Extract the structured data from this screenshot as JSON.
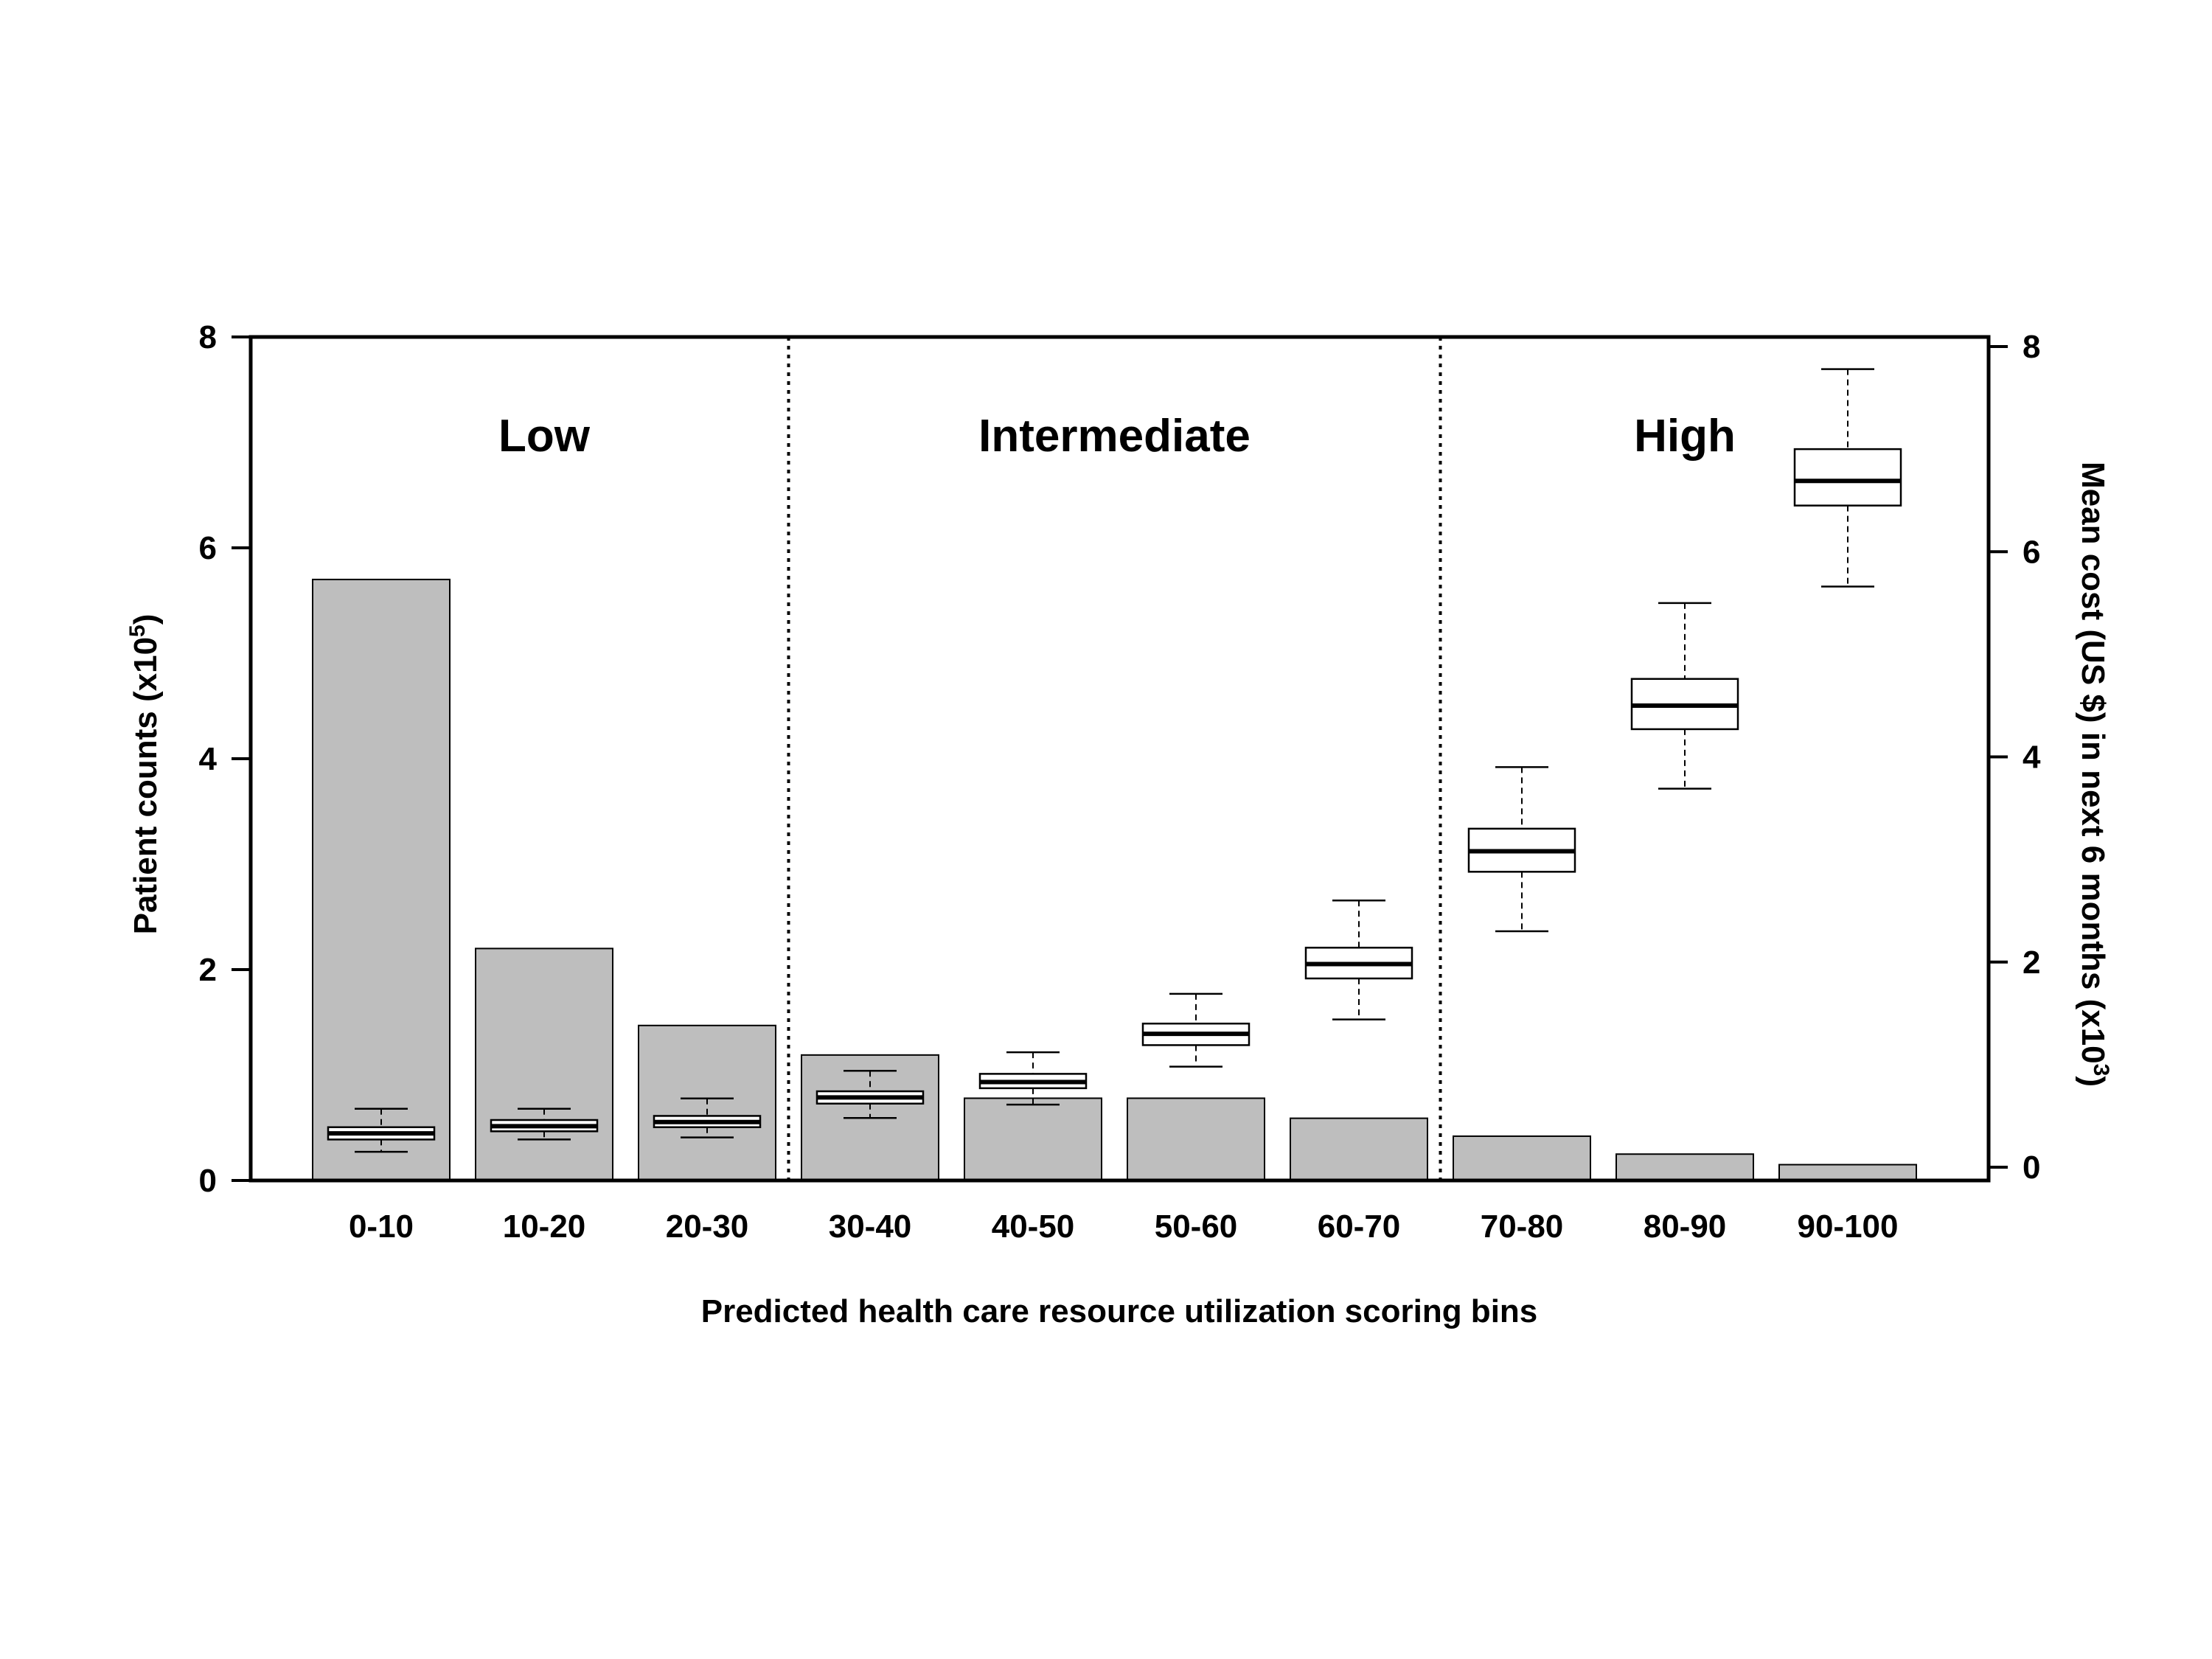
{
  "chart_data": {
    "type": "bar",
    "title": "",
    "xlabel": "Predicted health care resource utilization scoring bins",
    "ylabel": "Patient counts (x10",
    "ylabel_sup": "5",
    "ylabel_close": ")",
    "y2label": "Mean cost (US $) in next 6 months (x10",
    "y2label_sup": "3",
    "y2label_close": ")",
    "categories": [
      "0-10",
      "10-20",
      "20-30",
      "30-40",
      "40-50",
      "50-60",
      "60-70",
      "70-80",
      "80-90",
      "90-100"
    ],
    "ylim": [
      0,
      8
    ],
    "y2lim": [
      0,
      8
    ],
    "yticks": [
      "0",
      "2",
      "4",
      "6",
      "8"
    ],
    "y2ticks": [
      "0",
      "2",
      "4",
      "6",
      "8"
    ],
    "series": [
      {
        "name": "Patient counts",
        "axis": "left",
        "values": [
          5.7,
          2.2,
          1.47,
          1.19,
          0.78,
          0.78,
          0.59,
          0.42,
          0.25,
          0.15
        ],
        "color": "#bebebe"
      },
      {
        "name": "Mean cost",
        "axis": "right",
        "type": "boxplot",
        "boxes": [
          {
            "whisker_low": 0.15,
            "q1": 0.27,
            "median": 0.33,
            "q3": 0.39,
            "whisker_high": 0.57
          },
          {
            "whisker_low": 0.27,
            "q1": 0.35,
            "median": 0.4,
            "q3": 0.46,
            "whisker_high": 0.57
          },
          {
            "whisker_low": 0.29,
            "q1": 0.39,
            "median": 0.44,
            "q3": 0.5,
            "whisker_high": 0.67
          },
          {
            "whisker_low": 0.48,
            "q1": 0.62,
            "median": 0.68,
            "q3": 0.74,
            "whisker_high": 0.94
          },
          {
            "whisker_low": 0.61,
            "q1": 0.77,
            "median": 0.83,
            "q3": 0.91,
            "whisker_high": 1.12
          },
          {
            "whisker_low": 0.98,
            "q1": 1.19,
            "median": 1.3,
            "q3": 1.4,
            "whisker_high": 1.69
          },
          {
            "whisker_low": 1.44,
            "q1": 1.84,
            "median": 1.98,
            "q3": 2.14,
            "whisker_high": 2.6
          },
          {
            "whisker_low": 2.3,
            "q1": 2.88,
            "median": 3.08,
            "q3": 3.3,
            "whisker_high": 3.9
          },
          {
            "whisker_low": 3.69,
            "q1": 4.27,
            "median": 4.5,
            "q3": 4.76,
            "whisker_high": 5.5
          },
          {
            "whisker_low": 5.66,
            "q1": 6.45,
            "median": 6.69,
            "q3": 7.0,
            "whisker_high": 7.78
          }
        ]
      }
    ],
    "regions": [
      {
        "label": "Low",
        "from_index": 0,
        "to_index": 2
      },
      {
        "label": "Intermediate",
        "from_index": 3,
        "to_index": 6
      },
      {
        "label": "High",
        "from_index": 7,
        "to_index": 9
      }
    ]
  }
}
